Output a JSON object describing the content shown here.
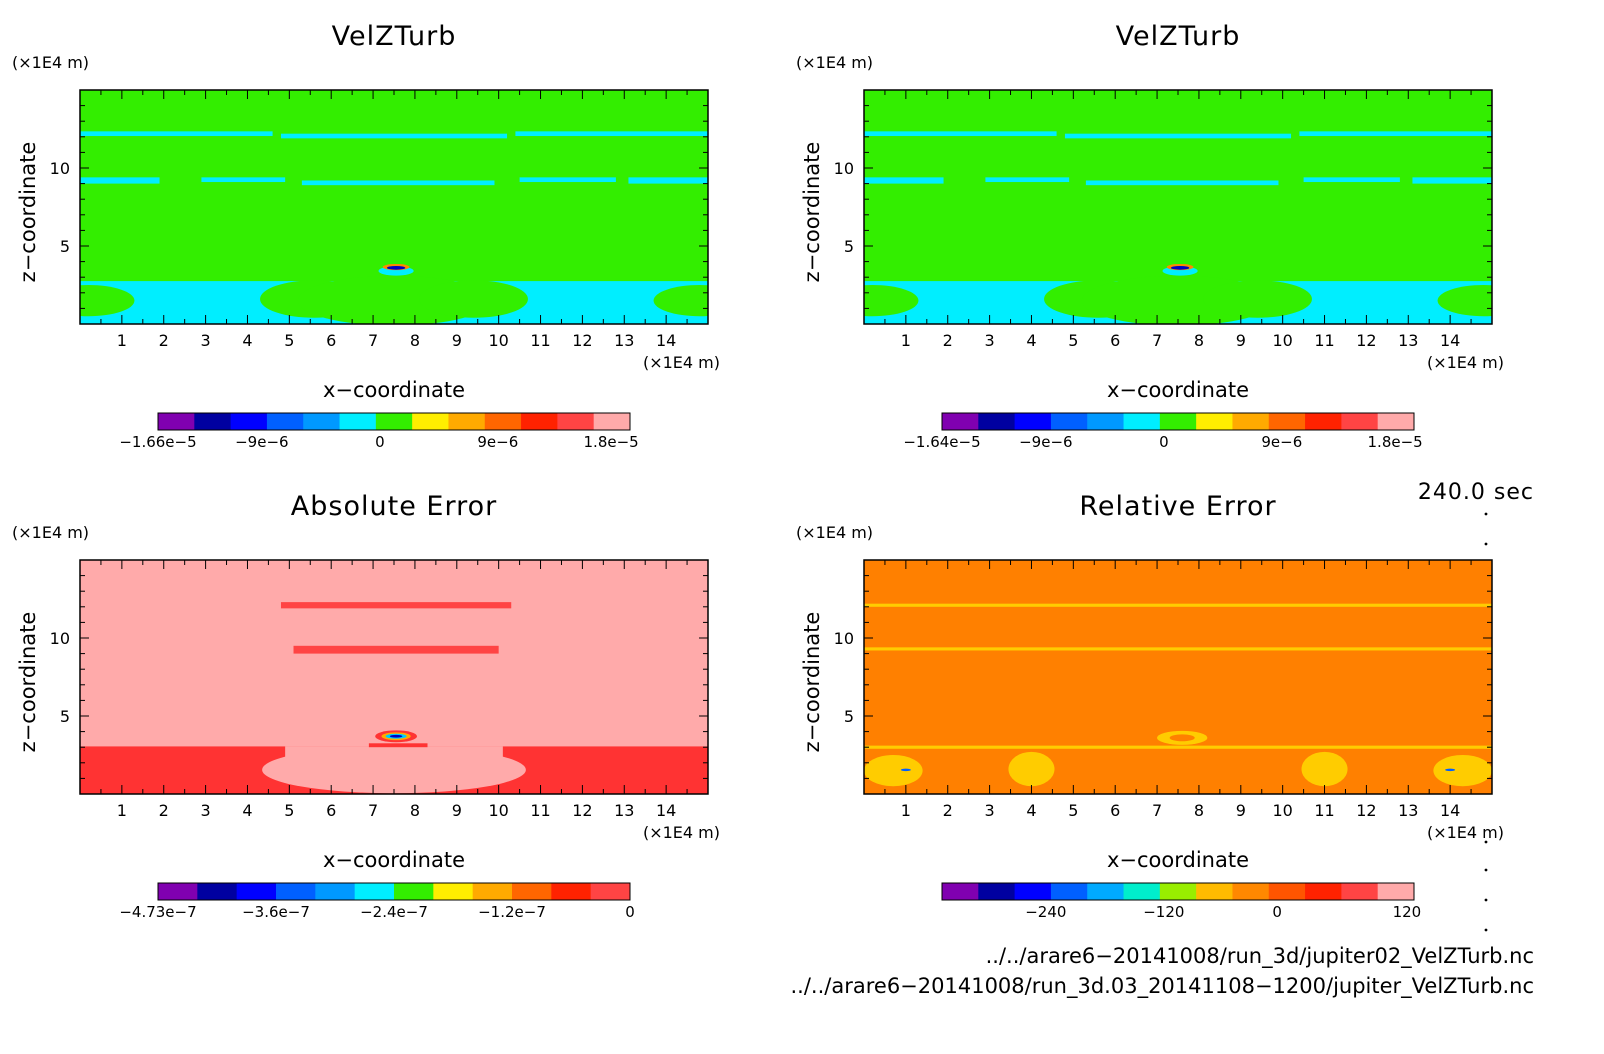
{
  "chart_data": [
    {
      "type": "heatmap",
      "title": "VelZTurb",
      "xlabel": "x−coordinate",
      "ylabel": "z−coordinate",
      "x_unit": "(×1E4 m)",
      "y_unit": "(×1E4 m)",
      "xlim": [
        0,
        15
      ],
      "ylim": [
        0,
        15
      ],
      "x_ticks": [
        "1",
        "2",
        "3",
        "4",
        "5",
        "6",
        "7",
        "8",
        "9",
        "10",
        "11",
        "12",
        "13",
        "14"
      ],
      "y_ticks": [
        "5",
        "10"
      ],
      "background_color": "#33ee00",
      "colorbar": {
        "colors": [
          "#8000b0",
          "#0000a0",
          "#0000ff",
          "#0060ff",
          "#0099ff",
          "#00eeff",
          "#33ee00",
          "#ffee00",
          "#ffaa00",
          "#ff6600",
          "#ff2200",
          "#ff4444",
          "#ffaaaa"
        ],
        "tick_labels": [
          "−1.66e−5",
          "−9e−6",
          "0",
          "9e−6",
          "1.8e−5"
        ]
      }
    },
    {
      "type": "heatmap",
      "title": "VelZTurb",
      "xlabel": "x−coordinate",
      "ylabel": "z−coordinate",
      "x_unit": "(×1E4 m)",
      "y_unit": "(×1E4 m)",
      "xlim": [
        0,
        15
      ],
      "ylim": [
        0,
        15
      ],
      "x_ticks": [
        "1",
        "2",
        "3",
        "4",
        "5",
        "6",
        "7",
        "8",
        "9",
        "10",
        "11",
        "12",
        "13",
        "14"
      ],
      "y_ticks": [
        "5",
        "10"
      ],
      "background_color": "#33ee00",
      "colorbar": {
        "colors": [
          "#8000b0",
          "#0000a0",
          "#0000ff",
          "#0060ff",
          "#0099ff",
          "#00eeff",
          "#33ee00",
          "#ffee00",
          "#ffaa00",
          "#ff6600",
          "#ff2200",
          "#ff4444",
          "#ffaaaa"
        ],
        "tick_labels": [
          "−1.64e−5",
          "−9e−6",
          "0",
          "9e−6",
          "1.8e−5"
        ]
      }
    },
    {
      "type": "heatmap",
      "title": "Absolute Error",
      "xlabel": "x−coordinate",
      "ylabel": "z−coordinate",
      "x_unit": "(×1E4 m)",
      "y_unit": "(×1E4 m)",
      "xlim": [
        0,
        15
      ],
      "ylim": [
        0,
        15
      ],
      "x_ticks": [
        "1",
        "2",
        "3",
        "4",
        "5",
        "6",
        "7",
        "8",
        "9",
        "10",
        "11",
        "12",
        "13",
        "14"
      ],
      "y_ticks": [
        "5",
        "10"
      ],
      "background_color": "#ffaaaa",
      "colorbar": {
        "colors": [
          "#8000b0",
          "#0000a0",
          "#0000ff",
          "#0060ff",
          "#0099ff",
          "#00eeff",
          "#33ee00",
          "#ffee00",
          "#ffaa00",
          "#ff6600",
          "#ff2200",
          "#ff4444"
        ],
        "tick_labels": [
          "−4.73e−7",
          "−3.6e−7",
          "−2.4e−7",
          "−1.2e−7",
          "0"
        ]
      }
    },
    {
      "type": "heatmap",
      "title": "Relative Error",
      "xlabel": "x−coordinate",
      "ylabel": "z−coordinate",
      "x_unit": "(×1E4 m)",
      "y_unit": "(×1E4 m)",
      "xlim": [
        0,
        15
      ],
      "ylim": [
        0,
        15
      ],
      "x_ticks": [
        "1",
        "2",
        "3",
        "4",
        "5",
        "6",
        "7",
        "8",
        "9",
        "10",
        "11",
        "12",
        "13",
        "14"
      ],
      "y_ticks": [
        "5",
        "10"
      ],
      "background_color": "#ff8000",
      "colorbar": {
        "colors": [
          "#8000b0",
          "#0000a0",
          "#0000ff",
          "#0060ff",
          "#00aaff",
          "#00eecc",
          "#99ee00",
          "#ffbb00",
          "#ff8800",
          "#ff5500",
          "#ff2200",
          "#ff4444",
          "#ffaaaa"
        ],
        "tick_labels": [
          "−240",
          "−120",
          "0",
          "120"
        ]
      }
    }
  ],
  "time_label": "240.0 sec",
  "file_paths": [
    "../../arare6−20141008/run_3d/jupiter02_VelZTurb.nc",
    "../../arare6−20141008/run_3d.03_20141108−1200/jupiter_VelZTurb.nc"
  ]
}
